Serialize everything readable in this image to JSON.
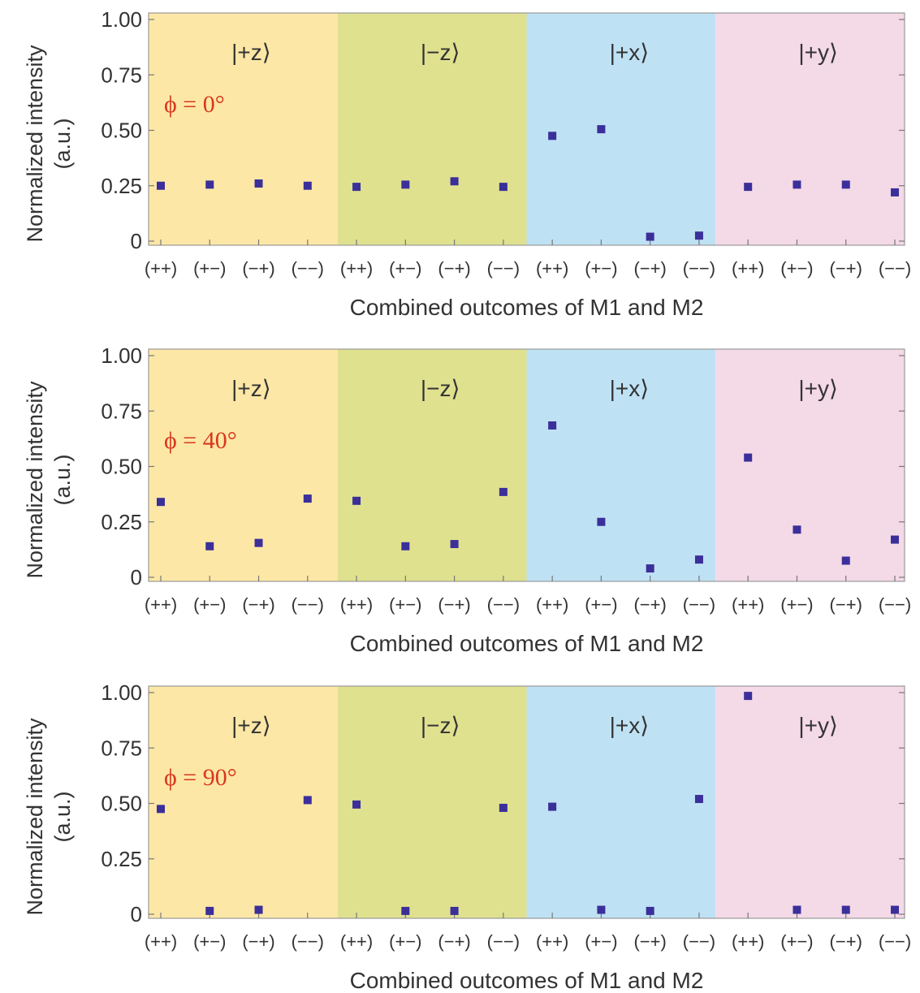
{
  "chart_data": [
    {
      "type": "scatter",
      "annotation": "ϕ = 0°",
      "xlabel": "Combined outcomes of M1 and M2",
      "ylabel": "Normalized intensity (a.u.)",
      "ylim": [
        0,
        1.0
      ],
      "yticks": [
        "0",
        "0.25",
        "0.50",
        "0.75",
        "1.00"
      ],
      "groups": [
        "|+z⟩",
        "|−z⟩",
        "|+x⟩",
        "|+y⟩"
      ],
      "group_colors": [
        "#fde7a6",
        "#dfe18f",
        "#bfe1f4",
        "#f4d9e7"
      ],
      "categories": [
        "(++)",
        "(+−)",
        "(−+)",
        "(−−)",
        "(++)",
        "(+−)",
        "(−+)",
        "(−−)",
        "(++)",
        "(+−)",
        "(−+)",
        "(−−)",
        "(++)",
        "(+−)",
        "(−+)",
        "(−−)"
      ],
      "values": [
        0.25,
        0.255,
        0.26,
        0.25,
        0.245,
        0.255,
        0.27,
        0.245,
        0.475,
        0.505,
        0.02,
        0.025,
        0.245,
        0.255,
        0.255,
        0.22
      ],
      "grid": false
    },
    {
      "type": "scatter",
      "annotation": "ϕ = 40°",
      "xlabel": "Combined outcomes of M1 and M2",
      "ylabel": "Normalized intensity (a.u.)",
      "ylim": [
        0,
        1.0
      ],
      "yticks": [
        "0",
        "0.25",
        "0.50",
        "0.75",
        "1.00"
      ],
      "groups": [
        "|+z⟩",
        "|−z⟩",
        "|+x⟩",
        "|+y⟩"
      ],
      "group_colors": [
        "#fde7a6",
        "#dfe18f",
        "#bfe1f4",
        "#f4d9e7"
      ],
      "categories": [
        "(++)",
        "(+−)",
        "(−+)",
        "(−−)",
        "(++)",
        "(+−)",
        "(−+)",
        "(−−)",
        "(++)",
        "(+−)",
        "(−+)",
        "(−−)",
        "(++)",
        "(+−)",
        "(−+)",
        "(−−)"
      ],
      "values": [
        0.34,
        0.14,
        0.155,
        0.355,
        0.345,
        0.14,
        0.15,
        0.385,
        0.685,
        0.25,
        0.04,
        0.08,
        0.54,
        0.215,
        0.075,
        0.17
      ],
      "grid": false
    },
    {
      "type": "scatter",
      "annotation": "ϕ = 90°",
      "xlabel": "Combined outcomes of M1 and M2",
      "ylabel": "Normalized intensity (a.u.)",
      "ylim": [
        0,
        1.0
      ],
      "yticks": [
        "0",
        "0.25",
        "0.50",
        "0.75",
        "1.00"
      ],
      "groups": [
        "|+z⟩",
        "|−z⟩",
        "|+x⟩",
        "|+y⟩"
      ],
      "group_colors": [
        "#fde7a6",
        "#dfe18f",
        "#bfe1f4",
        "#f4d9e7"
      ],
      "categories": [
        "(++)",
        "(+−)",
        "(−+)",
        "(−−)",
        "(++)",
        "(+−)",
        "(−+)",
        "(−−)",
        "(++)",
        "(+−)",
        "(−+)",
        "(−−)",
        "(++)",
        "(+−)",
        "(−+)",
        "(−−)"
      ],
      "values": [
        0.475,
        0.015,
        0.02,
        0.515,
        0.495,
        0.015,
        0.015,
        0.48,
        0.485,
        0.02,
        0.015,
        0.52,
        0.985,
        0.02,
        0.02,
        0.02
      ],
      "grid": false
    }
  ]
}
